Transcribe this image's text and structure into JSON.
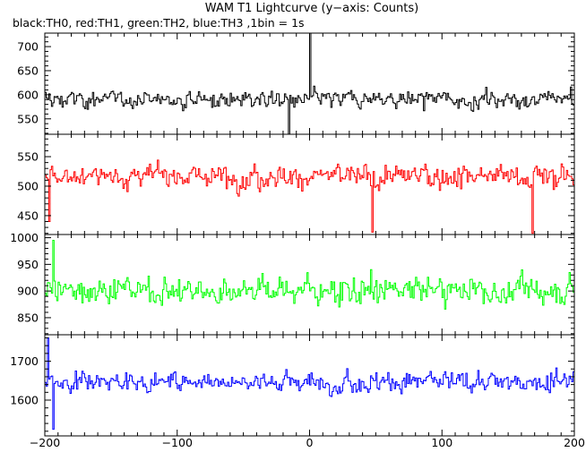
{
  "chart_data": {
    "type": "line",
    "title": "WAM T1 Lightcurve (y−axis: Counts)",
    "subtitle": "black:TH0, red:TH1, green:TH2, blue:TH3 ,1bin = 1s",
    "xlim": [
      -200,
      200
    ],
    "x_ticks": [
      -200,
      -100,
      0,
      100,
      200
    ],
    "x_tick_labels": [
      "−200",
      "−100",
      "0",
      "100",
      "200"
    ],
    "bin_seconds": 1,
    "panels": [
      {
        "name": "TH0",
        "color": "#000000",
        "ylim": [
          518,
          728
        ],
        "y_ticks": [
          550,
          600,
          650,
          700
        ],
        "mean": 590,
        "noise": 24,
        "features": [
          {
            "x": 0,
            "value": 728,
            "kind": "spike"
          },
          {
            "x": -16,
            "value": 518,
            "kind": "dip"
          }
        ]
      },
      {
        "name": "TH1",
        "color": "#ff0000",
        "ylim": [
          418,
          588
        ],
        "y_ticks": [
          450,
          500,
          550
        ],
        "mean": 517,
        "noise": 26,
        "features": [
          {
            "x": 47,
            "value": 422,
            "kind": "dip"
          },
          {
            "x": 168,
            "value": 420,
            "kind": "dip"
          },
          {
            "x": -197,
            "value": 440,
            "kind": "dip"
          }
        ]
      },
      {
        "name": "TH2",
        "color": "#00ff00",
        "ylim": [
          818,
          1006
        ],
        "y_ticks": [
          850,
          900,
          950,
          1000
        ],
        "mean": 902,
        "noise": 34,
        "features": [
          {
            "x": -194,
            "value": 995,
            "kind": "spike"
          }
        ]
      },
      {
        "name": "TH3",
        "color": "#0000ff",
        "ylim": [
          1508,
          1768
        ],
        "y_ticks": [
          1600,
          1700
        ],
        "mean": 1648,
        "noise": 34,
        "features": [
          {
            "x": -198,
            "value": 1760,
            "kind": "spike"
          },
          {
            "x": -194,
            "value": 1525,
            "kind": "dip"
          }
        ]
      }
    ]
  }
}
